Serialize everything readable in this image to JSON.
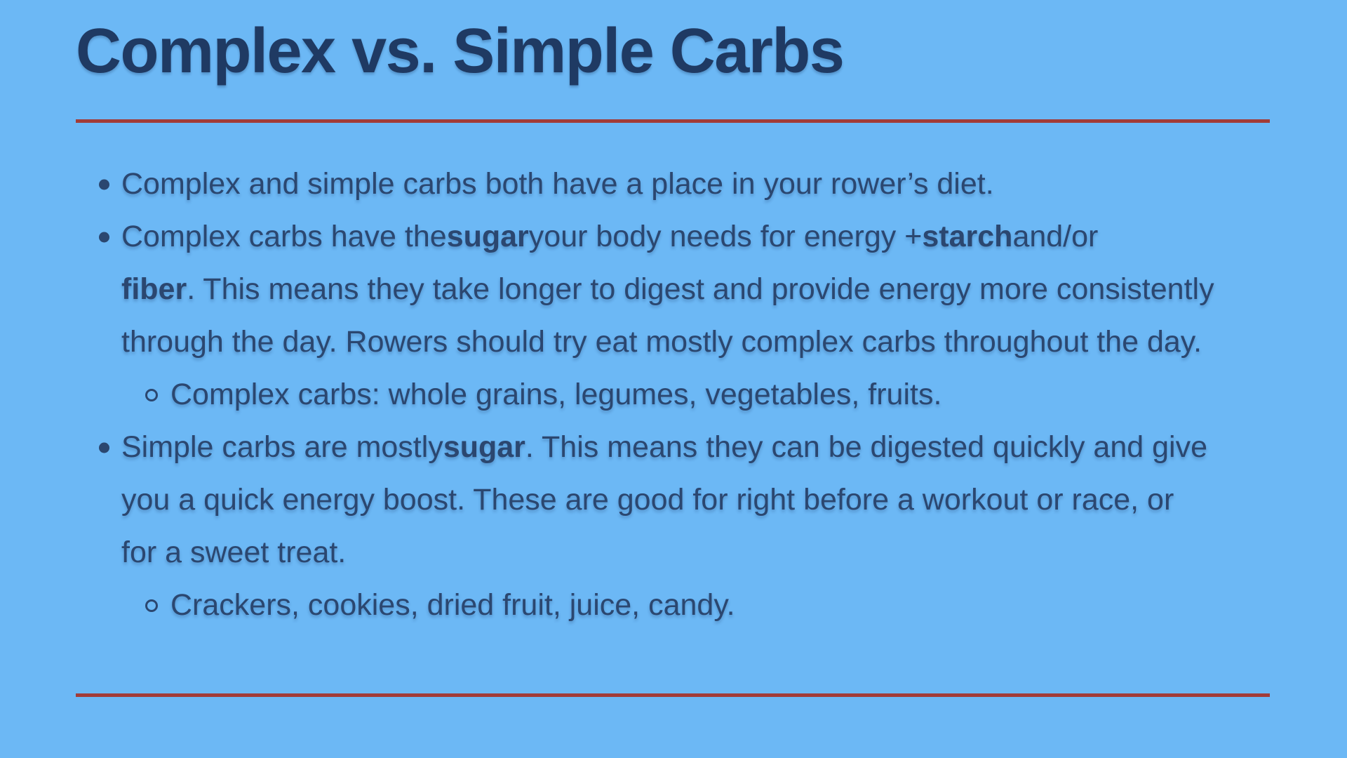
{
  "slide": {
    "title": "Complex vs. Simple Carbs",
    "colors": {
      "background": "#6cb8f5",
      "title_text": "#1f3a63",
      "body_text": "#2b4770",
      "divider": "#a23c38"
    },
    "bullets": [
      {
        "level": 1,
        "lines": [
          [
            {
              "t": "Complex and simple carbs both have a place in your rower’s diet."
            }
          ]
        ]
      },
      {
        "level": 1,
        "lines": [
          [
            {
              "t": "Complex carbs have the "
            },
            {
              "t": "sugar",
              "b": true
            },
            {
              "t": " your body needs for energy + "
            },
            {
              "t": "starch",
              "b": true
            },
            {
              "t": " and/or"
            }
          ],
          [
            {
              "t": "fiber",
              "b": true
            },
            {
              "t": ". This means they take longer to digest and provide energy more consistently"
            }
          ],
          [
            {
              "t": "through the day. Rowers should try eat mostly complex carbs throughout the day."
            }
          ]
        ]
      },
      {
        "level": 2,
        "lines": [
          [
            {
              "t": "Complex carbs: whole grains, legumes, vegetables, fruits."
            }
          ]
        ]
      },
      {
        "level": 1,
        "lines": [
          [
            {
              "t": "Simple carbs are mostly "
            },
            {
              "t": "sugar",
              "b": true
            },
            {
              "t": ". This means they can be digested quickly and give"
            }
          ],
          [
            {
              "t": "you a quick energy boost. These are good for right before a workout or race, or"
            }
          ],
          [
            {
              "t": "for a sweet treat."
            }
          ]
        ]
      },
      {
        "level": 2,
        "lines": [
          [
            {
              "t": "Crackers, cookies, dried fruit, juice, candy."
            }
          ]
        ]
      }
    ]
  }
}
